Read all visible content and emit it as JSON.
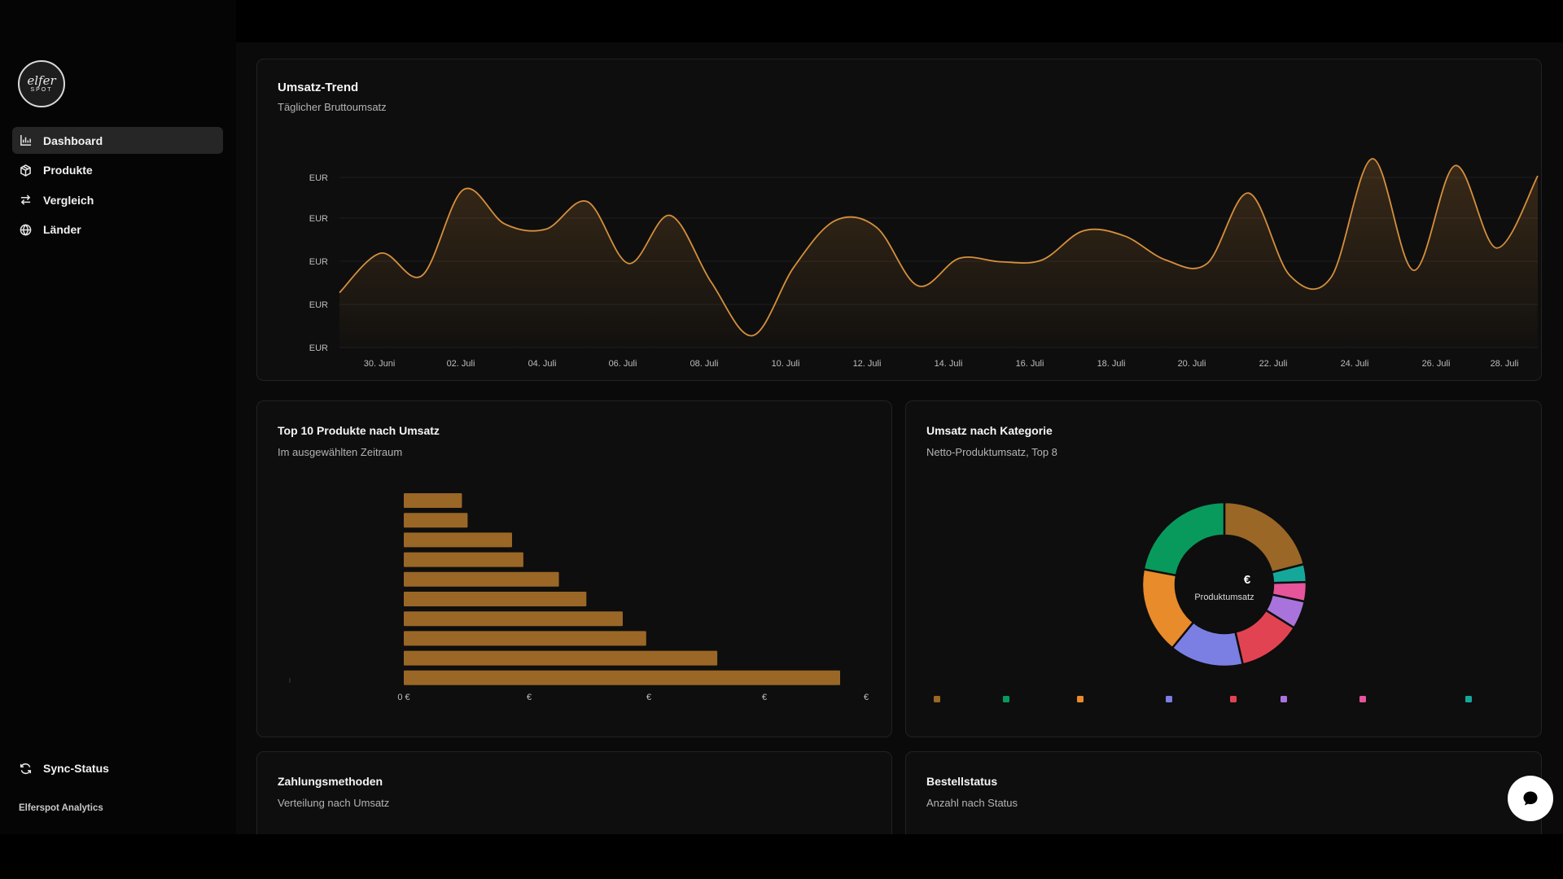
{
  "brand": {
    "logo_line1": "elfer",
    "logo_line2": "SPOT",
    "footer": "Elferspot Analytics"
  },
  "nav": {
    "items": [
      {
        "label": "Dashboard",
        "icon": "bar-chart-icon",
        "active": true
      },
      {
        "label": "Produkte",
        "icon": "package-icon",
        "active": false
      },
      {
        "label": "Vergleich",
        "icon": "arrows-swap-icon",
        "active": false
      },
      {
        "label": "Länder",
        "icon": "globe-icon",
        "active": false
      }
    ],
    "sync_label": "Sync-Status"
  },
  "trend": {
    "title": "Umsatz-Trend",
    "subtitle": "Täglicher Bruttoumsatz"
  },
  "top10": {
    "title": "Top 10 Produkte nach Umsatz",
    "subtitle": "Im ausgewählten Zeitraum"
  },
  "category": {
    "title": "Umsatz nach Kategorie",
    "subtitle": "Netto-Produktumsatz, Top 8",
    "center_symbol": "€",
    "center_label": "Produktumsatz"
  },
  "payments": {
    "title": "Zahlungsmethoden",
    "subtitle": "Verteilung nach Umsatz"
  },
  "orderstatus": {
    "title": "Bestellstatus",
    "subtitle": "Anzahl nach Status"
  },
  "chart_data": [
    {
      "type": "area",
      "y_tick_labels": [
        "EUR",
        "EUR",
        "EUR",
        "EUR",
        "EUR"
      ],
      "x_tick_labels": [
        "30. Juni",
        "02. Juli",
        "04. Juli",
        "06. Juli",
        "08. Juli",
        "10. Juli",
        "12. Juli",
        "14. Juli",
        "16. Juli",
        "18. Juli",
        "20. Juli",
        "22. Juli",
        "24. Juli",
        "26. Juli",
        "28. Juli"
      ],
      "values": [
        0.22,
        0.45,
        0.32,
        0.82,
        0.62,
        0.59,
        0.75,
        0.39,
        0.67,
        0.28,
        -0.03,
        0.37,
        0.64,
        0.6,
        0.26,
        0.42,
        0.4,
        0.41,
        0.58,
        0.55,
        0.41,
        0.39,
        0.8,
        0.32,
        0.31,
        1.0,
        0.35,
        0.96,
        0.48,
        0.9
      ],
      "grid": true,
      "color": "#d68f3c"
    },
    {
      "type": "bar",
      "orientation": "horizontal",
      "values": [
        540,
        388,
        300,
        271,
        226,
        192,
        148,
        134,
        79,
        72
      ],
      "x_tick_labels": [
        "0 €",
        "€",
        "€",
        "€",
        "€"
      ],
      "color": "#9a6726"
    },
    {
      "type": "pie",
      "donut": true,
      "values": [
        21,
        3.5,
        3.8,
        5.5,
        12.5,
        14.5,
        17,
        22
      ],
      "colors": [
        "#9a6726",
        "#15a89a",
        "#e6549a",
        "#a874db",
        "#e24352",
        "#7b7fe3",
        "#e88b2a",
        "#089a5c"
      ],
      "legend_colors": [
        "#9a6726",
        "#089a5c",
        "#e88b2a",
        "#7b7fe3",
        "#e24352",
        "#a874db",
        "#e6549a",
        "#15a89a"
      ],
      "legend_position": "bottom"
    }
  ]
}
